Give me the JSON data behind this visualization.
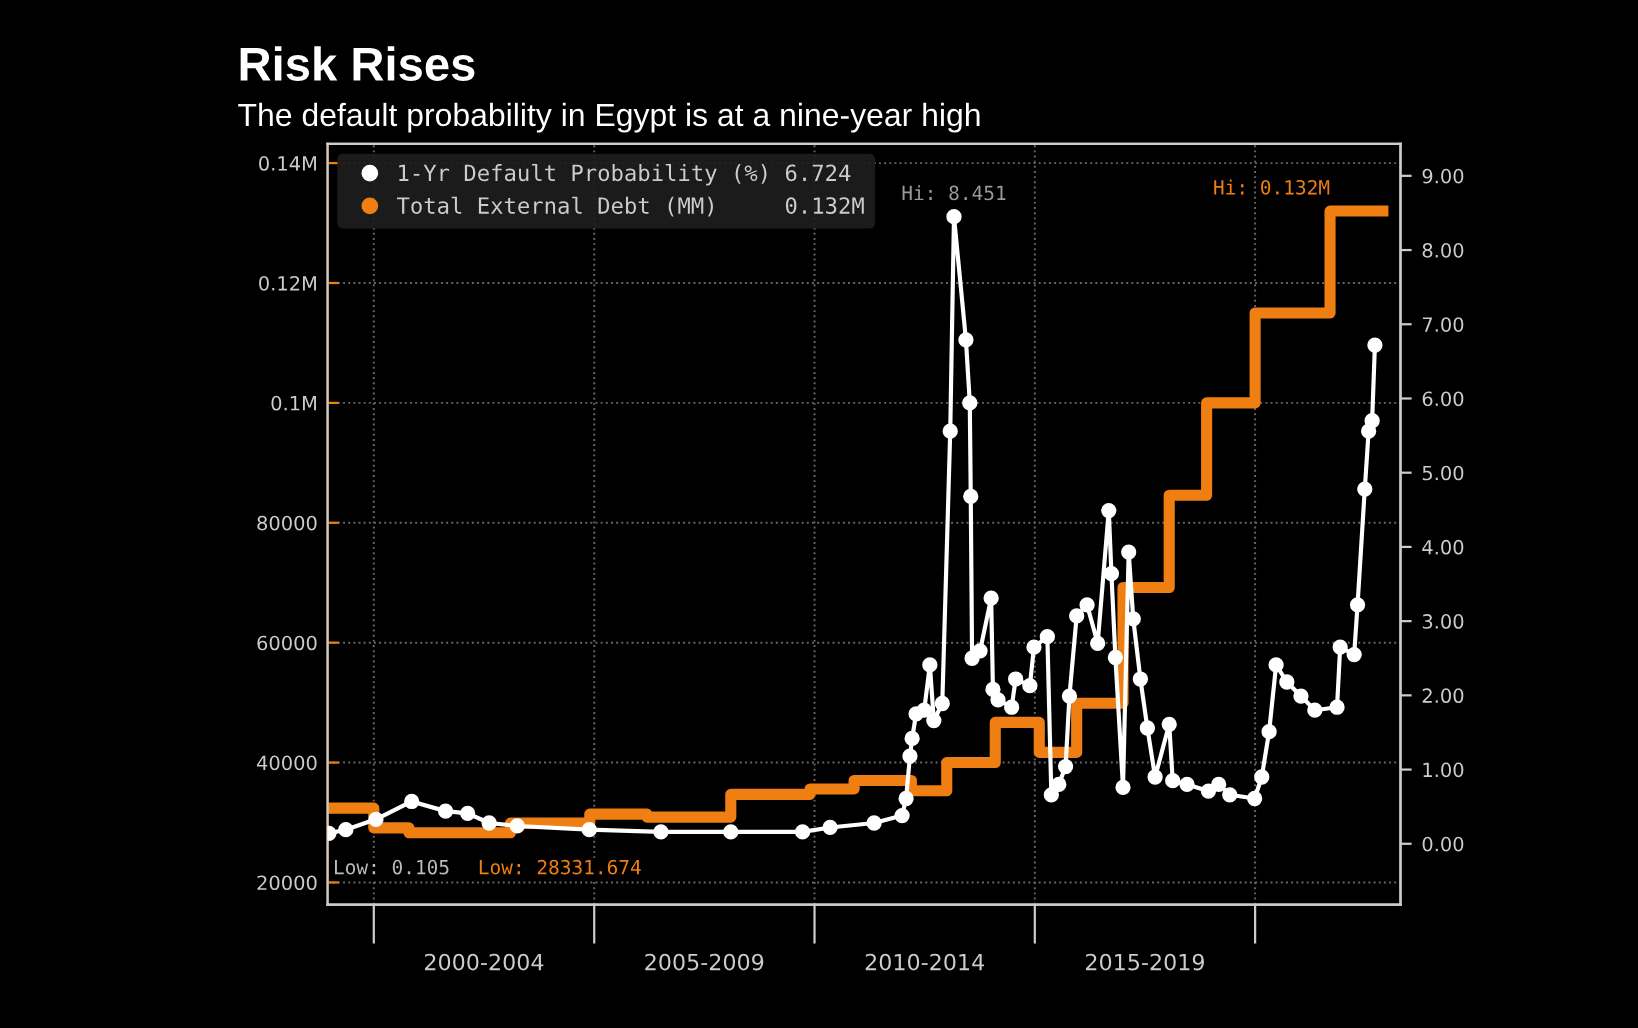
{
  "chart_data": {
    "type": "line",
    "title": "Risk Rises",
    "subtitle": "The default probability in Egypt is at a nine-year high",
    "series": [
      {
        "name": "1-Yr Default Probability (%) 6.724",
        "color": "#ffffff",
        "type": "line",
        "axis": "y2",
        "marker": "circle",
        "x": [
          "1998-12-25",
          "1999-05-14",
          "2000-01-19",
          "2000-11-10",
          "2001-08-18",
          "2002-02-17",
          "2002-08-14",
          "2003-04-04",
          "2004-11-21",
          "2006-07-08",
          "2008-02-07",
          "2009-09-24",
          "2010-05-10",
          "2011-05-10",
          "2011-12-28",
          "2012-01-30",
          "2012-03-02",
          "2012-03-20",
          "2012-04-22",
          "2012-06-28",
          "2012-08-14",
          "2012-09-16",
          "2012-11-25",
          "2013-01-30",
          "2013-03-02",
          "2013-06-09",
          "2013-07-11",
          "2013-07-19",
          "2013-07-30",
          "2013-10-04",
          "2014-01-04",
          "2014-01-19",
          "2014-03-02",
          "2014-06-23",
          "2014-07-26",
          "2014-11-21",
          "2014-12-25",
          "2015-04-15",
          "2015-05-18",
          "2015-07-19",
          "2015-09-13",
          "2015-10-15",
          "2015-12-14",
          "2016-03-09",
          "2016-06-05",
          "2016-09-05",
          "2016-09-27",
          "2016-10-30",
          "2017-01-01",
          "2017-02-17",
          "2017-03-27",
          "2017-05-25",
          "2017-07-22",
          "2017-09-24",
          "2018-01-19",
          "2018-02-17",
          "2018-06-16",
          "2018-12-10",
          "2019-03-05",
          "2019-06-05",
          "2019-12-28",
          "2020-02-25",
          "2020-04-26",
          "2020-06-23",
          "2020-09-20",
          "2021-01-15",
          "2021-05-10",
          "2021-11-10",
          "2021-12-06",
          "2022-04-01",
          "2022-04-29",
          "2022-06-28",
          "2022-07-30",
          "2022-08-28",
          "2022-09-20"
        ],
        "values": [
          0.14,
          0.19,
          0.33,
          0.57,
          0.44,
          0.41,
          0.28,
          0.24,
          0.19,
          0.16,
          0.16,
          0.16,
          0.22,
          0.28,
          0.38,
          0.61,
          1.18,
          1.42,
          1.75,
          1.8,
          2.41,
          1.66,
          1.89,
          5.56,
          8.45,
          6.79,
          5.94,
          4.68,
          2.5,
          2.6,
          3.31,
          2.08,
          1.94,
          1.84,
          2.22,
          2.13,
          2.65,
          2.79,
          0.66,
          0.8,
          1.04,
          1.99,
          3.07,
          3.22,
          2.7,
          4.49,
          3.64,
          2.51,
          0.76,
          3.93,
          3.03,
          2.22,
          1.56,
          0.9,
          1.61,
          0.85,
          0.8,
          0.71,
          0.8,
          0.66,
          0.61,
          0.9,
          1.51,
          2.41,
          2.18,
          1.99,
          1.8,
          1.84,
          2.65,
          2.55,
          3.22,
          4.78,
          5.56,
          5.7,
          6.72
        ]
      },
      {
        "name": "Total External Debt (MM)     0.132M",
        "color": "#f07f13",
        "type": "step",
        "x": [
          "1998-12-25",
          "2000-01-01",
          "2000-10-19",
          "2003-02-07",
          "2004-11-25",
          "2006-03-14",
          "2008-02-07",
          "2009-11-25",
          "2010-11-25",
          "2012-03-14",
          "2013-01-01",
          "2014-02-07",
          "2015-02-07",
          "2015-12-14",
          "2017-01-01",
          "2018-01-19",
          "2018-11-25",
          "2020-01-01",
          "2021-09-13",
          "2022-11-25"
        ],
        "values": [
          32400,
          29100,
          28300,
          29900,
          31400,
          30900,
          34700,
          35600,
          37000,
          35300,
          40000,
          46700,
          41700,
          49900,
          69200,
          84600,
          100000,
          115000,
          132000,
          132000
        ]
      }
    ],
    "xlim": [
      "1998-12-14",
      "2023-04-20"
    ],
    "xticks": [
      {
        "value": "2000-01-01",
        "label": null
      },
      {
        "value": "2002-07-02",
        "label": "2000-2004"
      },
      {
        "value": "2005-01-01",
        "label": null
      },
      {
        "value": "2007-07-02",
        "label": "2005-2009"
      },
      {
        "value": "2010-01-01",
        "label": null
      },
      {
        "value": "2012-07-02",
        "label": "2010-2014"
      },
      {
        "value": "2015-01-01",
        "label": null
      },
      {
        "value": "2017-07-02",
        "label": "2015-2019"
      },
      {
        "value": "2020-01-01",
        "label": null
      }
    ],
    "ylim": [
      16300,
      143200
    ],
    "yticks": [
      {
        "value": 20000,
        "label": "20000"
      },
      {
        "value": 40000,
        "label": "40000"
      },
      {
        "value": 60000,
        "label": "60000"
      },
      {
        "value": 80000,
        "label": "80000"
      },
      {
        "value": 100000,
        "label": "0.1M"
      },
      {
        "value": 120000,
        "label": "0.12M"
      },
      {
        "value": 140000,
        "label": "0.14M"
      }
    ],
    "y2lim": [
      -0.82,
      9.43
    ],
    "y2ticks": [
      {
        "value": 0,
        "label": "0.00"
      },
      {
        "value": 1,
        "label": "1.00"
      },
      {
        "value": 2,
        "label": "2.00"
      },
      {
        "value": 3,
        "label": "3.00"
      },
      {
        "value": 4,
        "label": "4.00"
      },
      {
        "value": 5,
        "label": "5.00"
      },
      {
        "value": 6,
        "label": "6.00"
      },
      {
        "value": 7,
        "label": "7.00"
      },
      {
        "value": 8,
        "label": "8.00"
      },
      {
        "value": 9,
        "label": "9.00"
      }
    ],
    "annotations": [
      "Hi: 8.451",
      "Hi: 0.132M",
      "Low: 0.105",
      "Low: 28331.674"
    ],
    "grid": true,
    "legend": "top left"
  }
}
